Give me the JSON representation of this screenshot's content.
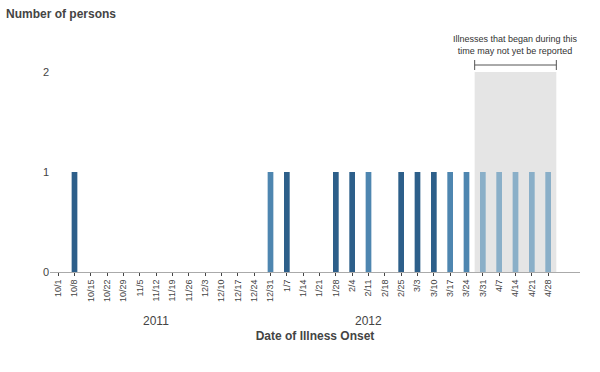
{
  "chart_data": {
    "type": "bar",
    "title": "Number of persons",
    "xlabel": "Date of Illness Onset",
    "categories": [
      "10/1",
      "10/8",
      "10/15",
      "10/22",
      "10/29",
      "11/5",
      "11/12",
      "11/19",
      "11/26",
      "12/3",
      "12/10",
      "12/17",
      "12/24",
      "12/31",
      "1/7",
      "1/14",
      "1/21",
      "1/28",
      "2/4",
      "2/11",
      "2/18",
      "2/25",
      "3/3",
      "3/10",
      "3/17",
      "3/24",
      "3/31",
      "4/7",
      "4/14",
      "4/21",
      "4/28"
    ],
    "values": [
      0,
      1,
      0,
      0,
      0,
      0,
      0,
      0,
      0,
      0,
      0,
      0,
      0,
      1,
      1,
      0,
      0,
      1,
      1,
      1,
      0,
      1,
      1,
      1,
      1,
      1,
      1,
      1,
      1,
      1,
      1
    ],
    "colors": [
      "#4e86b0",
      "#2d5f8a",
      "#4e86b0",
      "#4e86b0",
      "#4e86b0",
      "#4e86b0",
      "#4e86b0",
      "#4e86b0",
      "#4e86b0",
      "#4e86b0",
      "#4e86b0",
      "#4e86b0",
      "#4e86b0",
      "#4e86b0",
      "#2d5f8a",
      "#4e86b0",
      "#4e86b0",
      "#2d5f8a",
      "#2d5f8a",
      "#4e86b0",
      "#4e86b0",
      "#2d5f8a",
      "#2d5f8a",
      "#2d5f8a",
      "#4e86b0",
      "#4e86b0",
      "#8aafc8",
      "#8aafc8",
      "#8aafc8",
      "#8aafc8",
      "#8aafc8"
    ],
    "ylim": [
      0,
      2
    ],
    "yticks": [
      0,
      1,
      2
    ],
    "grid": false,
    "annotations": [
      {
        "text": "2011",
        "x": "11/12"
      },
      {
        "text": "2012",
        "x": "2/11"
      },
      {
        "text": "Illnesses that began during this\ntime may not yet be reported",
        "from": "3/31",
        "to": "4/28",
        "shade_color": "#e5e5e5"
      }
    ]
  }
}
